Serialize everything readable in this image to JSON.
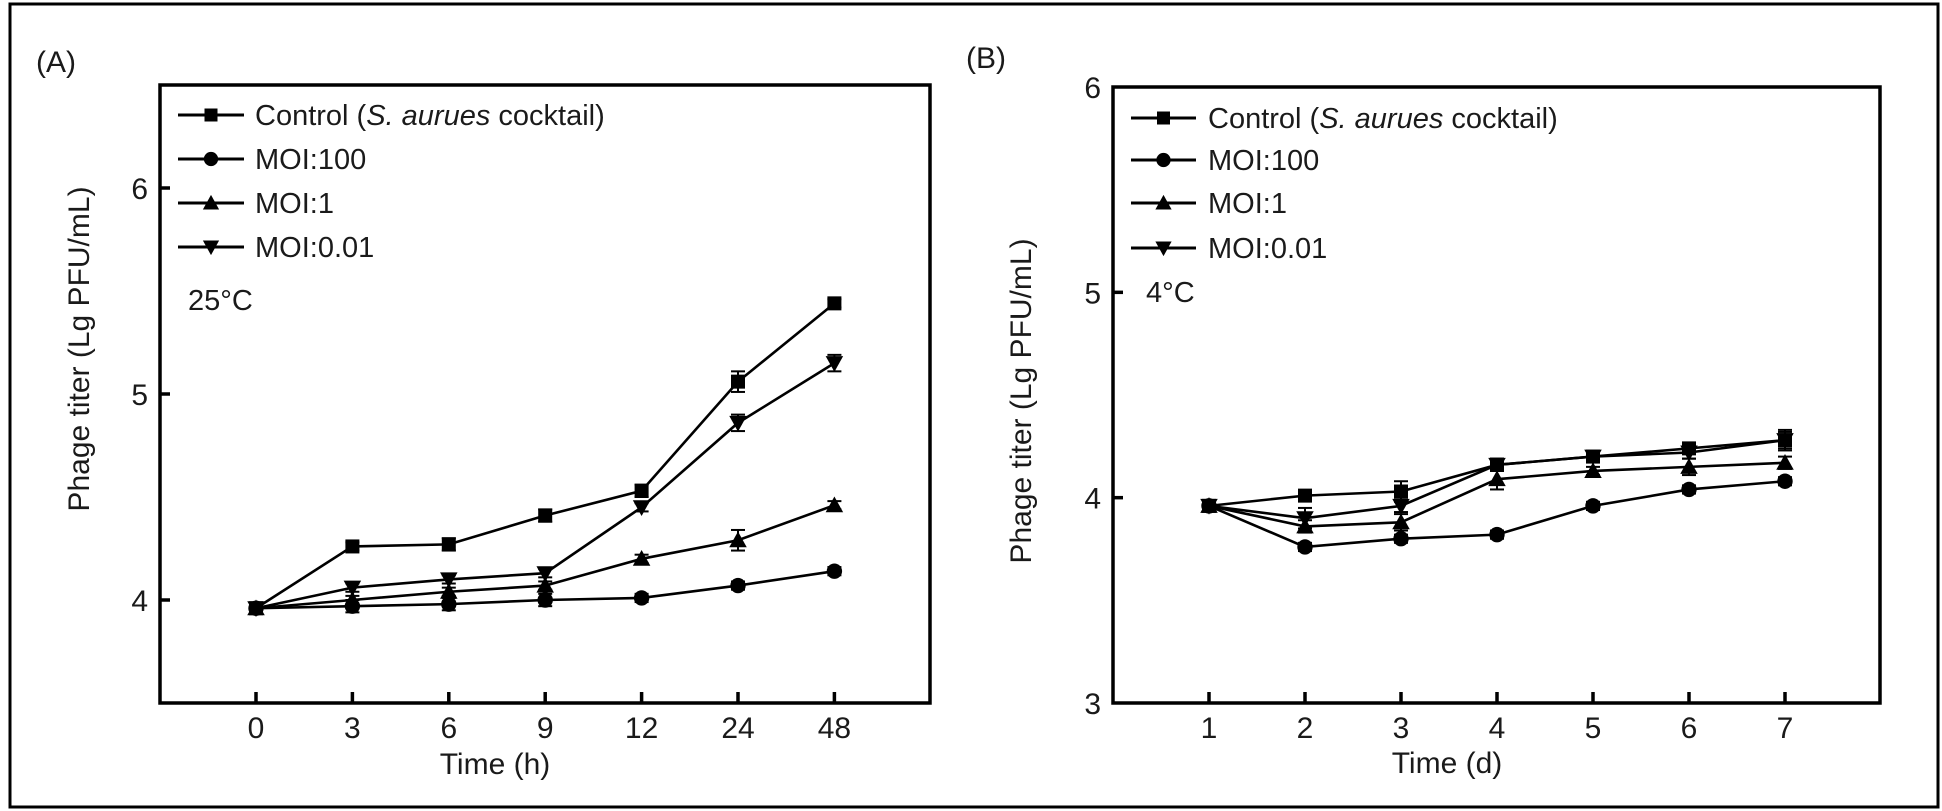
{
  "figure": {
    "panels": [
      "(A)",
      "(B)"
    ]
  },
  "chart_data": [
    {
      "type": "line",
      "panel_label": "(A)",
      "annotation": "25°C",
      "xlabel": "Time (h)",
      "ylabel": "Phage titer (Lg PFU/mL)",
      "x_categories": [
        "0",
        "3",
        "6",
        "9",
        "12",
        "24",
        "48"
      ],
      "ylim": [
        3.5,
        6.5
      ],
      "yticks": [
        4,
        5,
        6
      ],
      "grid": false,
      "legend_position": "top-left",
      "series": [
        {
          "name": "Control",
          "name_parts": [
            "Control (",
            "S. aurues",
            " cocktail)"
          ],
          "marker": "square",
          "values": [
            3.96,
            4.26,
            4.27,
            4.41,
            4.53,
            5.06,
            5.44
          ],
          "errors": [
            0.02,
            0.02,
            0.03,
            0.03,
            0.03,
            0.05,
            0.02
          ]
        },
        {
          "name": "MOI:100",
          "marker": "circle",
          "values": [
            3.96,
            3.97,
            3.98,
            4.0,
            4.01,
            4.07,
            4.14
          ],
          "errors": [
            0.02,
            0.03,
            0.03,
            0.03,
            0.02,
            0.02,
            0.02
          ]
        },
        {
          "name": "MOI:1",
          "marker": "triangle-up",
          "values": [
            3.96,
            4.0,
            4.04,
            4.07,
            4.2,
            4.29,
            4.46
          ],
          "errors": [
            0.02,
            0.02,
            0.02,
            0.02,
            0.02,
            0.05,
            0.02
          ]
        },
        {
          "name": "MOI:0.01",
          "marker": "triangle-down",
          "values": [
            3.96,
            4.06,
            4.1,
            4.13,
            4.45,
            4.86,
            5.15
          ],
          "errors": [
            0.02,
            0.02,
            0.02,
            0.02,
            0.02,
            0.04,
            0.04
          ]
        }
      ]
    },
    {
      "type": "line",
      "panel_label": "(B)",
      "annotation": "4°C",
      "xlabel": "Time (d)",
      "ylabel": "Phage titer (Lg PFU/mL)",
      "x_categories": [
        "1",
        "2",
        "3",
        "4",
        "5",
        "6",
        "7"
      ],
      "ylim": [
        3,
        6
      ],
      "yticks": [
        3,
        4,
        5,
        6
      ],
      "grid": false,
      "legend_position": "top-left",
      "series": [
        {
          "name": "Control",
          "name_parts": [
            "Control (",
            "S. aurues",
            " cocktail)"
          ],
          "marker": "square",
          "values": [
            3.96,
            4.01,
            4.03,
            4.16,
            4.2,
            4.24,
            4.28
          ],
          "errors": [
            0.02,
            0.02,
            0.05,
            0.03,
            0.02,
            0.02,
            0.05
          ]
        },
        {
          "name": "MOI:100",
          "marker": "circle",
          "values": [
            3.96,
            3.76,
            3.8,
            3.82,
            3.96,
            4.04,
            4.08
          ],
          "errors": [
            0.02,
            0.02,
            0.02,
            0.02,
            0.02,
            0.02,
            0.02
          ]
        },
        {
          "name": "MOI:1",
          "marker": "triangle-up",
          "values": [
            3.96,
            3.86,
            3.88,
            4.09,
            4.13,
            4.15,
            4.17
          ],
          "errors": [
            0.02,
            0.03,
            0.04,
            0.05,
            0.02,
            0.04,
            0.03
          ]
        },
        {
          "name": "MOI:0.01",
          "marker": "triangle-down",
          "values": [
            3.96,
            3.9,
            3.96,
            4.16,
            4.2,
            4.22,
            4.28
          ],
          "errors": [
            0.02,
            0.05,
            0.03,
            0.03,
            0.02,
            0.03,
            0.04
          ]
        }
      ]
    }
  ],
  "colors": {
    "ink": "#000000",
    "text": "#1a1a1a",
    "background": "#ffffff"
  }
}
